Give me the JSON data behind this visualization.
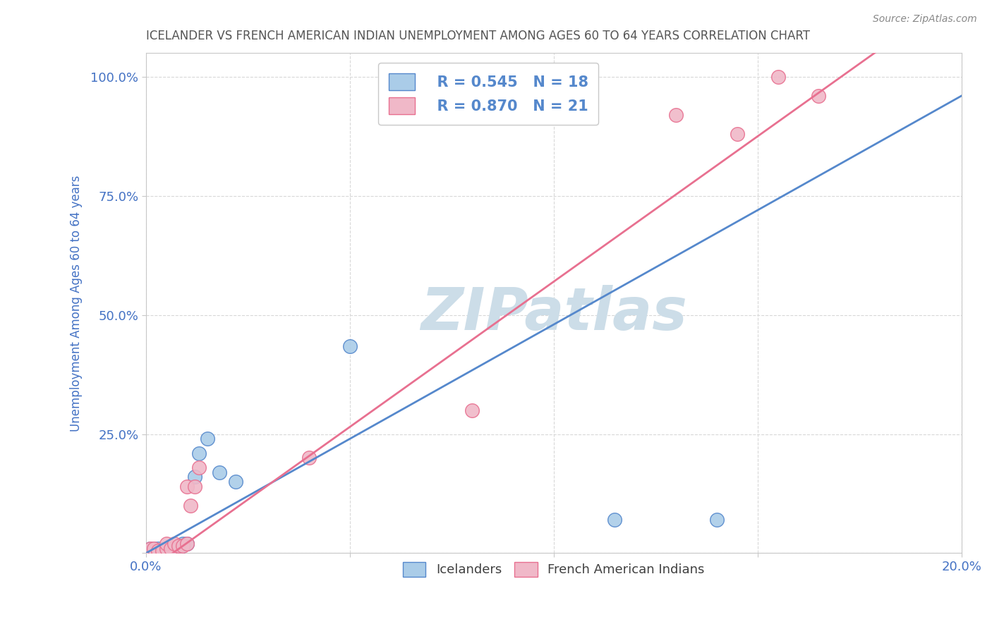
{
  "title": "ICELANDER VS FRENCH AMERICAN INDIAN UNEMPLOYMENT AMONG AGES 60 TO 64 YEARS CORRELATION CHART",
  "source": "Source: ZipAtlas.com",
  "ylabel_label": "Unemployment Among Ages 60 to 64 years",
  "xlim": [
    0.0,
    0.2
  ],
  "ylim": [
    0.0,
    1.05
  ],
  "blue_color": "#aacce8",
  "pink_color": "#f0b8c8",
  "blue_line_color": "#5588cc",
  "pink_line_color": "#e87090",
  "watermark_color": "#ccdde8",
  "legend_R_blue": "R = 0.545",
  "legend_N_blue": "N = 18",
  "legend_R_pink": "R = 0.870",
  "legend_N_pink": "N = 21",
  "icelander_points": [
    [
      0.001,
      0.01
    ],
    [
      0.002,
      0.01
    ],
    [
      0.003,
      0.01
    ],
    [
      0.004,
      0.005
    ],
    [
      0.005,
      0.01
    ],
    [
      0.006,
      0.01
    ],
    [
      0.007,
      0.005
    ],
    [
      0.008,
      0.01
    ],
    [
      0.009,
      0.02
    ],
    [
      0.01,
      0.02
    ],
    [
      0.012,
      0.16
    ],
    [
      0.013,
      0.21
    ],
    [
      0.015,
      0.24
    ],
    [
      0.018,
      0.17
    ],
    [
      0.022,
      0.15
    ],
    [
      0.05,
      0.435
    ],
    [
      0.115,
      0.07
    ],
    [
      0.14,
      0.07
    ]
  ],
  "french_ai_points": [
    [
      0.001,
      0.01
    ],
    [
      0.002,
      0.01
    ],
    [
      0.003,
      0.005
    ],
    [
      0.004,
      0.005
    ],
    [
      0.005,
      0.01
    ],
    [
      0.005,
      0.02
    ],
    [
      0.006,
      0.01
    ],
    [
      0.007,
      0.02
    ],
    [
      0.008,
      0.015
    ],
    [
      0.009,
      0.015
    ],
    [
      0.01,
      0.02
    ],
    [
      0.01,
      0.14
    ],
    [
      0.011,
      0.1
    ],
    [
      0.012,
      0.14
    ],
    [
      0.013,
      0.18
    ],
    [
      0.04,
      0.2
    ],
    [
      0.08,
      0.3
    ],
    [
      0.13,
      0.92
    ],
    [
      0.145,
      0.88
    ],
    [
      0.155,
      1.0
    ],
    [
      0.165,
      0.96
    ]
  ],
  "blue_slope": 4.8,
  "blue_intercept": 0.0,
  "pink_slope": 6.1,
  "pink_intercept": -0.04,
  "background_color": "#ffffff",
  "title_color": "#555555",
  "tick_label_color": "#4472c4"
}
